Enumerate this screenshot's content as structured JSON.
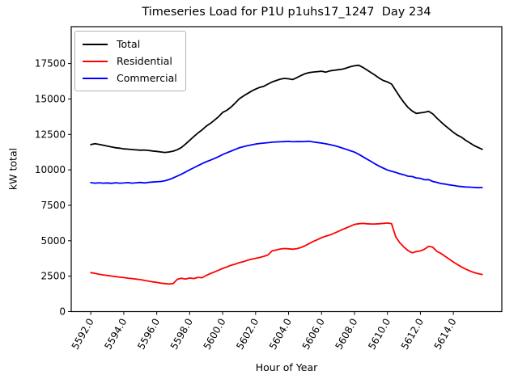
{
  "title": "Timeseries Load for P1U p1uhs17_1247  Day 234",
  "chart_data": {
    "type": "line",
    "title": "Timeseries Load for P1U p1uhs17_1247  Day 234",
    "xlabel": "Hour of Year",
    "ylabel": "kW total",
    "xlim": [
      5590.81,
      5616.94
    ],
    "ylim": [
      0,
      20100
    ],
    "grid": false,
    "legend_position": "upper left",
    "x_ticks": [
      5592,
      5594,
      5596,
      5598,
      5600,
      5602,
      5604,
      5606,
      5608,
      5610,
      5612,
      5614
    ],
    "x_tick_labels": [
      "5592.0",
      "5594.0",
      "5596.0",
      "5598.0",
      "5600.0",
      "5602.0",
      "5604.0",
      "5606.0",
      "5608.0",
      "5610.0",
      "5612.0",
      "5614.0"
    ],
    "x_tick_rotation": 60,
    "y_ticks": [
      0,
      2500,
      5000,
      7500,
      10000,
      12500,
      15000,
      17500
    ],
    "y_tick_labels": [
      "0",
      "2500",
      "5000",
      "7500",
      "10000",
      "12500",
      "15000",
      "17500"
    ],
    "series": [
      {
        "name": "Total",
        "color": "#000000",
        "points": [
          [
            5592.0,
            11780
          ],
          [
            5592.25,
            11850
          ],
          [
            5592.5,
            11800
          ],
          [
            5592.75,
            11740
          ],
          [
            5593.0,
            11680
          ],
          [
            5593.25,
            11620
          ],
          [
            5593.5,
            11560
          ],
          [
            5593.75,
            11530
          ],
          [
            5594.0,
            11480
          ],
          [
            5594.25,
            11460
          ],
          [
            5594.5,
            11430
          ],
          [
            5594.75,
            11410
          ],
          [
            5595.0,
            11390
          ],
          [
            5595.25,
            11400
          ],
          [
            5595.5,
            11370
          ],
          [
            5595.75,
            11330
          ],
          [
            5596.0,
            11300
          ],
          [
            5596.25,
            11260
          ],
          [
            5596.5,
            11230
          ],
          [
            5596.75,
            11260
          ],
          [
            5597.0,
            11320
          ],
          [
            5597.25,
            11420
          ],
          [
            5597.5,
            11580
          ],
          [
            5597.75,
            11820
          ],
          [
            5598.0,
            12080
          ],
          [
            5598.25,
            12350
          ],
          [
            5598.5,
            12600
          ],
          [
            5598.75,
            12820
          ],
          [
            5599.0,
            13080
          ],
          [
            5599.25,
            13270
          ],
          [
            5599.5,
            13500
          ],
          [
            5599.75,
            13750
          ],
          [
            5600.0,
            14050
          ],
          [
            5600.25,
            14200
          ],
          [
            5600.5,
            14420
          ],
          [
            5600.75,
            14700
          ],
          [
            5601.0,
            15000
          ],
          [
            5601.25,
            15200
          ],
          [
            5601.5,
            15380
          ],
          [
            5601.75,
            15550
          ],
          [
            5602.0,
            15700
          ],
          [
            5602.25,
            15820
          ],
          [
            5602.5,
            15900
          ],
          [
            5602.75,
            16050
          ],
          [
            5603.0,
            16200
          ],
          [
            5603.25,
            16300
          ],
          [
            5603.5,
            16400
          ],
          [
            5603.75,
            16450
          ],
          [
            5604.0,
            16420
          ],
          [
            5604.25,
            16370
          ],
          [
            5604.5,
            16500
          ],
          [
            5604.75,
            16650
          ],
          [
            5605.0,
            16780
          ],
          [
            5605.25,
            16860
          ],
          [
            5605.5,
            16900
          ],
          [
            5605.75,
            16930
          ],
          [
            5606.0,
            16960
          ],
          [
            5606.25,
            16890
          ],
          [
            5606.5,
            16980
          ],
          [
            5606.75,
            17020
          ],
          [
            5607.0,
            17060
          ],
          [
            5607.25,
            17100
          ],
          [
            5607.5,
            17180
          ],
          [
            5607.75,
            17280
          ],
          [
            5608.0,
            17340
          ],
          [
            5608.25,
            17380
          ],
          [
            5608.5,
            17230
          ],
          [
            5608.75,
            17050
          ],
          [
            5609.0,
            16860
          ],
          [
            5609.25,
            16680
          ],
          [
            5609.5,
            16470
          ],
          [
            5609.75,
            16300
          ],
          [
            5610.0,
            16200
          ],
          [
            5610.25,
            16050
          ],
          [
            5610.5,
            15600
          ],
          [
            5610.75,
            15150
          ],
          [
            5611.0,
            14750
          ],
          [
            5611.25,
            14400
          ],
          [
            5611.5,
            14150
          ],
          [
            5611.75,
            13980
          ],
          [
            5612.0,
            14020
          ],
          [
            5612.25,
            14060
          ],
          [
            5612.5,
            14130
          ],
          [
            5612.75,
            13950
          ],
          [
            5613.0,
            13650
          ],
          [
            5613.25,
            13380
          ],
          [
            5613.5,
            13120
          ],
          [
            5613.75,
            12880
          ],
          [
            5614.0,
            12650
          ],
          [
            5614.25,
            12450
          ],
          [
            5614.5,
            12300
          ],
          [
            5614.75,
            12080
          ],
          [
            5615.0,
            11900
          ],
          [
            5615.25,
            11720
          ],
          [
            5615.5,
            11580
          ],
          [
            5615.75,
            11450
          ]
        ]
      },
      {
        "name": "Residential",
        "color": "#ff0000",
        "points": [
          [
            5592.0,
            2750
          ],
          [
            5592.25,
            2700
          ],
          [
            5592.5,
            2640
          ],
          [
            5592.75,
            2590
          ],
          [
            5593.0,
            2550
          ],
          [
            5593.25,
            2510
          ],
          [
            5593.5,
            2470
          ],
          [
            5593.75,
            2430
          ],
          [
            5594.0,
            2400
          ],
          [
            5594.25,
            2360
          ],
          [
            5594.5,
            2330
          ],
          [
            5594.75,
            2290
          ],
          [
            5595.0,
            2260
          ],
          [
            5595.25,
            2200
          ],
          [
            5595.5,
            2150
          ],
          [
            5595.75,
            2100
          ],
          [
            5596.0,
            2060
          ],
          [
            5596.25,
            2010
          ],
          [
            5596.5,
            1980
          ],
          [
            5596.75,
            1950
          ],
          [
            5597.0,
            1980
          ],
          [
            5597.25,
            2280
          ],
          [
            5597.5,
            2350
          ],
          [
            5597.75,
            2300
          ],
          [
            5598.0,
            2370
          ],
          [
            5598.25,
            2330
          ],
          [
            5598.5,
            2420
          ],
          [
            5598.75,
            2390
          ],
          [
            5599.0,
            2550
          ],
          [
            5599.25,
            2680
          ],
          [
            5599.5,
            2800
          ],
          [
            5599.75,
            2920
          ],
          [
            5600.0,
            3050
          ],
          [
            5600.25,
            3150
          ],
          [
            5600.5,
            3270
          ],
          [
            5600.75,
            3350
          ],
          [
            5601.0,
            3450
          ],
          [
            5601.25,
            3520
          ],
          [
            5601.5,
            3620
          ],
          [
            5601.75,
            3700
          ],
          [
            5602.0,
            3760
          ],
          [
            5602.25,
            3820
          ],
          [
            5602.5,
            3900
          ],
          [
            5602.75,
            4000
          ],
          [
            5603.0,
            4280
          ],
          [
            5603.25,
            4350
          ],
          [
            5603.5,
            4420
          ],
          [
            5603.75,
            4450
          ],
          [
            5604.0,
            4430
          ],
          [
            5604.25,
            4400
          ],
          [
            5604.5,
            4440
          ],
          [
            5604.75,
            4520
          ],
          [
            5605.0,
            4650
          ],
          [
            5605.25,
            4800
          ],
          [
            5605.5,
            4950
          ],
          [
            5605.75,
            5080
          ],
          [
            5606.0,
            5220
          ],
          [
            5606.25,
            5320
          ],
          [
            5606.5,
            5400
          ],
          [
            5606.75,
            5520
          ],
          [
            5607.0,
            5650
          ],
          [
            5607.25,
            5780
          ],
          [
            5607.5,
            5900
          ],
          [
            5607.75,
            6030
          ],
          [
            5608.0,
            6150
          ],
          [
            5608.25,
            6200
          ],
          [
            5608.5,
            6220
          ],
          [
            5608.75,
            6200
          ],
          [
            5609.0,
            6180
          ],
          [
            5609.25,
            6180
          ],
          [
            5609.5,
            6200
          ],
          [
            5609.75,
            6220
          ],
          [
            5610.0,
            6250
          ],
          [
            5610.25,
            6200
          ],
          [
            5610.5,
            5280
          ],
          [
            5610.75,
            4850
          ],
          [
            5611.0,
            4550
          ],
          [
            5611.25,
            4300
          ],
          [
            5611.5,
            4150
          ],
          [
            5611.75,
            4230
          ],
          [
            5612.0,
            4280
          ],
          [
            5612.25,
            4400
          ],
          [
            5612.5,
            4600
          ],
          [
            5612.75,
            4550
          ],
          [
            5613.0,
            4250
          ],
          [
            5613.25,
            4100
          ],
          [
            5613.5,
            3900
          ],
          [
            5613.75,
            3700
          ],
          [
            5614.0,
            3500
          ],
          [
            5614.25,
            3320
          ],
          [
            5614.5,
            3150
          ],
          [
            5614.75,
            3000
          ],
          [
            5615.0,
            2870
          ],
          [
            5615.25,
            2760
          ],
          [
            5615.5,
            2680
          ],
          [
            5615.75,
            2620
          ]
        ]
      },
      {
        "name": "Commercial",
        "color": "#0000ff",
        "points": [
          [
            5592.0,
            9100
          ],
          [
            5592.25,
            9060
          ],
          [
            5592.5,
            9090
          ],
          [
            5592.75,
            9060
          ],
          [
            5593.0,
            9080
          ],
          [
            5593.25,
            9050
          ],
          [
            5593.5,
            9090
          ],
          [
            5593.75,
            9060
          ],
          [
            5594.0,
            9070
          ],
          [
            5594.25,
            9100
          ],
          [
            5594.5,
            9060
          ],
          [
            5594.75,
            9090
          ],
          [
            5595.0,
            9110
          ],
          [
            5595.25,
            9080
          ],
          [
            5595.5,
            9120
          ],
          [
            5595.75,
            9140
          ],
          [
            5596.0,
            9160
          ],
          [
            5596.25,
            9180
          ],
          [
            5596.5,
            9230
          ],
          [
            5596.75,
            9320
          ],
          [
            5597.0,
            9430
          ],
          [
            5597.25,
            9560
          ],
          [
            5597.5,
            9700
          ],
          [
            5597.75,
            9850
          ],
          [
            5598.0,
            10000
          ],
          [
            5598.25,
            10150
          ],
          [
            5598.5,
            10300
          ],
          [
            5598.75,
            10440
          ],
          [
            5599.0,
            10570
          ],
          [
            5599.25,
            10680
          ],
          [
            5599.5,
            10800
          ],
          [
            5599.75,
            10930
          ],
          [
            5600.0,
            11080
          ],
          [
            5600.25,
            11200
          ],
          [
            5600.5,
            11320
          ],
          [
            5600.75,
            11440
          ],
          [
            5601.0,
            11550
          ],
          [
            5601.25,
            11630
          ],
          [
            5601.5,
            11700
          ],
          [
            5601.75,
            11760
          ],
          [
            5602.0,
            11820
          ],
          [
            5602.25,
            11860
          ],
          [
            5602.5,
            11890
          ],
          [
            5602.75,
            11920
          ],
          [
            5603.0,
            11950
          ],
          [
            5603.25,
            11970
          ],
          [
            5603.5,
            11980
          ],
          [
            5603.75,
            11990
          ],
          [
            5604.0,
            12010
          ],
          [
            5604.25,
            11980
          ],
          [
            5604.5,
            12000
          ],
          [
            5604.75,
            11990
          ],
          [
            5605.0,
            12000
          ],
          [
            5605.25,
            12020
          ],
          [
            5605.5,
            11970
          ],
          [
            5605.75,
            11930
          ],
          [
            5606.0,
            11890
          ],
          [
            5606.25,
            11840
          ],
          [
            5606.5,
            11780
          ],
          [
            5606.75,
            11720
          ],
          [
            5607.0,
            11640
          ],
          [
            5607.25,
            11540
          ],
          [
            5607.5,
            11450
          ],
          [
            5607.75,
            11350
          ],
          [
            5608.0,
            11250
          ],
          [
            5608.25,
            11100
          ],
          [
            5608.5,
            10930
          ],
          [
            5608.75,
            10760
          ],
          [
            5609.0,
            10600
          ],
          [
            5609.25,
            10420
          ],
          [
            5609.5,
            10260
          ],
          [
            5609.75,
            10120
          ],
          [
            5610.0,
            9990
          ],
          [
            5610.25,
            9900
          ],
          [
            5610.5,
            9820
          ],
          [
            5610.75,
            9720
          ],
          [
            5611.0,
            9650
          ],
          [
            5611.25,
            9550
          ],
          [
            5611.5,
            9530
          ],
          [
            5611.75,
            9430
          ],
          [
            5612.0,
            9400
          ],
          [
            5612.25,
            9300
          ],
          [
            5612.5,
            9310
          ],
          [
            5612.75,
            9180
          ],
          [
            5613.0,
            9120
          ],
          [
            5613.25,
            9030
          ],
          [
            5613.5,
            9000
          ],
          [
            5613.75,
            8940
          ],
          [
            5614.0,
            8900
          ],
          [
            5614.25,
            8850
          ],
          [
            5614.5,
            8820
          ],
          [
            5614.75,
            8790
          ],
          [
            5615.0,
            8780
          ],
          [
            5615.25,
            8760
          ],
          [
            5615.5,
            8740
          ],
          [
            5615.75,
            8750
          ]
        ]
      }
    ]
  }
}
